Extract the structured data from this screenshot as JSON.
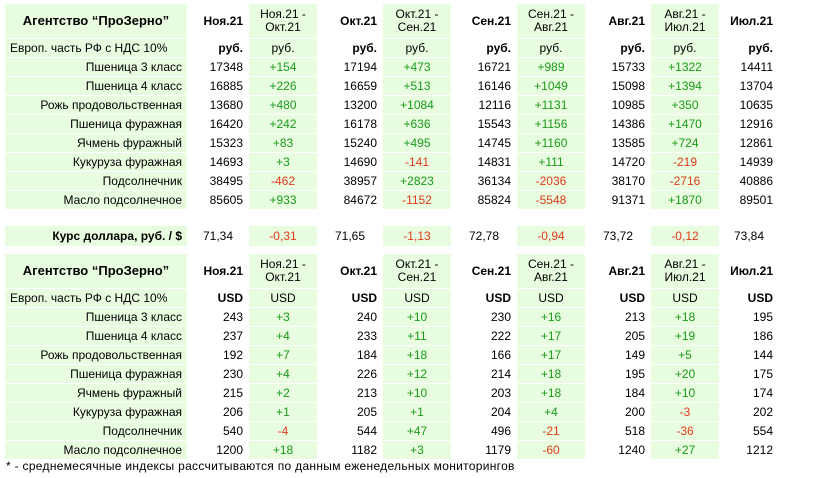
{
  "rub_table": {
    "agency": "Агентство “ПроЗерно”",
    "headers": [
      "Ноя.21",
      "Ноя.21 -\nОкт.21",
      "Окт.21",
      "Окт.21 -\nСен.21",
      "Сен.21",
      "Сен.21 -\nАвг.21",
      "Авг.21",
      "Авг.21 -\nИюл.21",
      "Июл.21"
    ],
    "unit_label": "Европ. часть РФ с НДС 10%",
    "units": [
      "руб.",
      "руб.",
      "руб.",
      "руб.",
      "руб.",
      "руб.",
      "руб.",
      "руб.",
      "руб."
    ],
    "rows": [
      {
        "name": "Пшеница 3 класс",
        "cells": [
          "17348",
          "+154",
          "17194",
          "+473",
          "16721",
          "+989",
          "15733",
          "+1322",
          "14411"
        ]
      },
      {
        "name": "Пшеница 4 класс",
        "cells": [
          "16885",
          "+226",
          "16659",
          "+513",
          "16146",
          "+1049",
          "15098",
          "+1394",
          "13704"
        ]
      },
      {
        "name": "Рожь продовольственная",
        "cells": [
          "13680",
          "+480",
          "13200",
          "+1084",
          "12116",
          "+1131",
          "10985",
          "+350",
          "10635"
        ]
      },
      {
        "name": "Пшеница фуражная",
        "cells": [
          "16420",
          "+242",
          "16178",
          "+636",
          "15543",
          "+1156",
          "14386",
          "+1470",
          "12916"
        ]
      },
      {
        "name": "Ячмень фуражный",
        "cells": [
          "15323",
          "+83",
          "15240",
          "+495",
          "14745",
          "+1160",
          "13585",
          "+724",
          "12861"
        ]
      },
      {
        "name": "Кукуруза фуражная",
        "cells": [
          "14693",
          "+3",
          "14690",
          "-141",
          "14831",
          "+111",
          "14720",
          "-219",
          "14939"
        ]
      },
      {
        "name": "Подсолнечник",
        "cells": [
          "38495",
          "-462",
          "38957",
          "+2823",
          "36134",
          "-2036",
          "38170",
          "-2716",
          "40886"
        ]
      },
      {
        "name": "Масло подсолнечное",
        "cells": [
          "85605",
          "+933",
          "84672",
          "-1152",
          "85824",
          "-5548",
          "91371",
          "+1870",
          "89501"
        ]
      }
    ]
  },
  "rate_row": {
    "name": "Курс доллара, руб. / $",
    "cells": [
      "71,34",
      "-0,31",
      "71,65",
      "-1,13",
      "72,78",
      "-0,94",
      "73,72",
      "-0,12",
      "73,84"
    ]
  },
  "usd_table": {
    "agency": "Агентство “ПроЗерно”",
    "headers": [
      "Ноя.21",
      "Ноя.21 -\nОкт.21",
      "Окт.21",
      "Окт.21 -\nСен.21",
      "Сен.21",
      "Сен.21 -\nАвг.21",
      "Авг.21",
      "Авг.21 -\nИюл.21",
      "Июл.21"
    ],
    "unit_label": "Европ. часть РФ с НДС 10%",
    "units": [
      "USD",
      "USD",
      "USD",
      "USD",
      "USD",
      "USD",
      "USD",
      "USD",
      "USD"
    ],
    "rows": [
      {
        "name": "Пшеница 3 класс",
        "cells": [
          "243",
          "+3",
          "240",
          "+10",
          "230",
          "+16",
          "213",
          "+18",
          "195"
        ]
      },
      {
        "name": "Пшеница 4 класс",
        "cells": [
          "237",
          "+4",
          "233",
          "+11",
          "222",
          "+17",
          "205",
          "+19",
          "186"
        ]
      },
      {
        "name": "Рожь продовольственная",
        "cells": [
          "192",
          "+7",
          "184",
          "+18",
          "166",
          "+17",
          "149",
          "+5",
          "144"
        ]
      },
      {
        "name": "Пшеница фуражная",
        "cells": [
          "230",
          "+4",
          "226",
          "+12",
          "214",
          "+18",
          "195",
          "+20",
          "175"
        ]
      },
      {
        "name": "Ячмень фуражный",
        "cells": [
          "215",
          "+2",
          "213",
          "+10",
          "203",
          "+18",
          "184",
          "+10",
          "174"
        ]
      },
      {
        "name": "Кукуруза фуражная",
        "cells": [
          "206",
          "+1",
          "205",
          "+1",
          "204",
          "+4",
          "200",
          "-3",
          "202"
        ]
      },
      {
        "name": "Подсолнечник",
        "cells": [
          "540",
          "-4",
          "544",
          "+47",
          "496",
          "-21",
          "518",
          "-36",
          "554"
        ]
      },
      {
        "name": "Масло подсолнечное",
        "cells": [
          "1200",
          "+18",
          "1182",
          "+3",
          "1179",
          "-60",
          "1240",
          "+27",
          "1212"
        ]
      }
    ]
  },
  "footnote": "* - среднемесячные индексы рассчитываются по данным еженедельных мониторингов",
  "colors": {
    "highlight": "#e8fce0",
    "positive": "#1b9a1b",
    "negative": "#e03a1a"
  }
}
